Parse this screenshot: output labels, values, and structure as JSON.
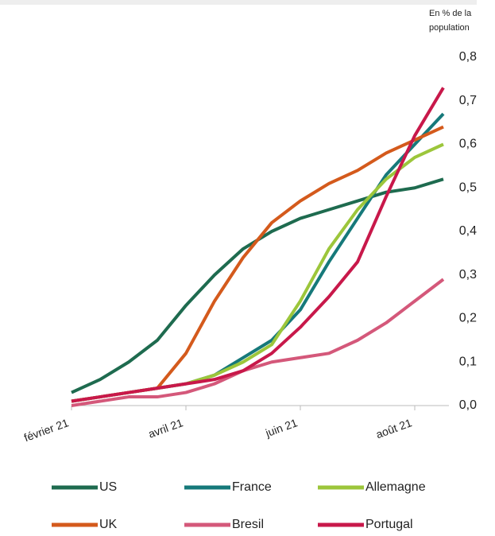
{
  "chart_data": {
    "type": "line",
    "y_label": "En % de la population",
    "categories": [
      "février 21",
      null,
      null,
      null,
      "avril 21",
      null,
      null,
      null,
      "juin 21",
      null,
      null,
      null,
      "août 21",
      null
    ],
    "series": [
      {
        "name": "US",
        "color": "#1e6b4f",
        "values": [
          0.03,
          0.06,
          0.1,
          0.15,
          0.23,
          0.3,
          0.36,
          0.4,
          0.43,
          0.45,
          0.47,
          0.49,
          0.5,
          0.52
        ]
      },
      {
        "name": "France",
        "color": "#16797a",
        "values": [
          0.01,
          0.02,
          0.03,
          0.04,
          0.05,
          0.07,
          0.11,
          0.15,
          0.22,
          0.33,
          0.43,
          0.53,
          0.6,
          0.67
        ]
      },
      {
        "name": "Allemagne",
        "color": "#9cc63b",
        "values": [
          0.01,
          0.02,
          0.03,
          0.04,
          0.05,
          0.07,
          0.1,
          0.14,
          0.24,
          0.36,
          0.45,
          0.52,
          0.57,
          0.6
        ]
      },
      {
        "name": "UK",
        "color": "#d45a1c",
        "values": [
          0.01,
          0.02,
          0.03,
          0.04,
          0.12,
          0.24,
          0.34,
          0.42,
          0.47,
          0.51,
          0.54,
          0.58,
          0.61,
          0.64
        ]
      },
      {
        "name": "Bresil",
        "color": "#d4587a",
        "values": [
          0.0,
          0.01,
          0.02,
          0.02,
          0.03,
          0.05,
          0.08,
          0.1,
          0.11,
          0.12,
          0.15,
          0.19,
          0.24,
          0.29
        ]
      },
      {
        "name": "Portugal",
        "color": "#c8184a",
        "values": [
          0.01,
          0.02,
          0.03,
          0.04,
          0.05,
          0.06,
          0.08,
          0.12,
          0.18,
          0.25,
          0.33,
          0.48,
          0.62,
          0.73
        ]
      }
    ],
    "ylim": [
      0,
      0.8
    ],
    "yticks": [
      {
        "value": 0,
        "label": "0,0"
      },
      {
        "value": 0.1,
        "label": "0,1"
      },
      {
        "value": 0.2,
        "label": "0,2"
      },
      {
        "value": 0.3,
        "label": "0,3"
      },
      {
        "value": 0.4,
        "label": "0,4"
      },
      {
        "value": 0.5,
        "label": "0,5"
      },
      {
        "value": 0.6,
        "label": "0,6"
      },
      {
        "value": 0.7,
        "label": "0,7"
      },
      {
        "value": 0.8,
        "label": "0,8"
      }
    ],
    "y_axis_side": "right",
    "grid": false
  }
}
